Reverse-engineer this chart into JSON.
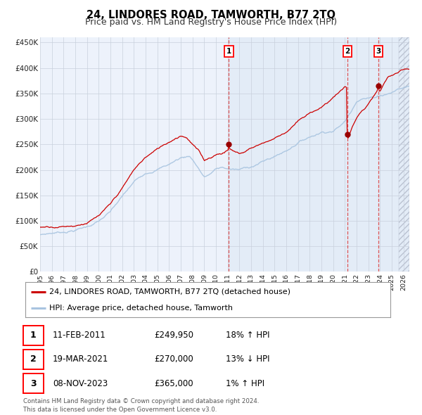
{
  "title": "24, LINDORES ROAD, TAMWORTH, B77 2TQ",
  "subtitle": "Price paid vs. HM Land Registry's House Price Index (HPI)",
  "ylim": [
    0,
    460000
  ],
  "yticks": [
    0,
    50000,
    100000,
    150000,
    200000,
    250000,
    300000,
    350000,
    400000,
    450000
  ],
  "ytick_labels": [
    "£0",
    "£50K",
    "£100K",
    "£150K",
    "£200K",
    "£250K",
    "£300K",
    "£350K",
    "£400K",
    "£450K"
  ],
  "hpi_color": "#a8c4e0",
  "price_color": "#cc0000",
  "marker_color": "#990000",
  "vline_color": "#dd4444",
  "shade_color": "#dce8f5",
  "transaction_dates": [
    2011.1,
    2021.22,
    2023.85
  ],
  "transaction_prices": [
    249950,
    270000,
    365000
  ],
  "transaction_labels": [
    "1",
    "2",
    "3"
  ],
  "legend_label_price": "24, LINDORES ROAD, TAMWORTH, B77 2TQ (detached house)",
  "legend_label_hpi": "HPI: Average price, detached house, Tamworth",
  "table_rows": [
    [
      "1",
      "11-FEB-2011",
      "£249,950",
      "18% ↑ HPI"
    ],
    [
      "2",
      "19-MAR-2021",
      "£270,000",
      "13% ↓ HPI"
    ],
    [
      "3",
      "08-NOV-2023",
      "£365,000",
      "1% ↑ HPI"
    ]
  ],
  "footnote": "Contains HM Land Registry data © Crown copyright and database right 2024.\nThis data is licensed under the Open Government Licence v3.0.",
  "background_color": "#ffffff",
  "plot_bg_color": "#edf2fb",
  "grid_color": "#c8d0dc",
  "title_fontsize": 10.5,
  "subtitle_fontsize": 9,
  "tick_fontsize": 7.5,
  "xstart": 1995.0,
  "xend": 2026.5,
  "xtick_years": [
    1995,
    1996,
    1997,
    1998,
    1999,
    2000,
    2001,
    2002,
    2003,
    2004,
    2005,
    2006,
    2007,
    2008,
    2009,
    2010,
    2011,
    2012,
    2013,
    2014,
    2015,
    2016,
    2017,
    2018,
    2019,
    2020,
    2021,
    2022,
    2023,
    2024,
    2025,
    2026
  ],
  "xtick_labels": [
    "1995",
    "1996",
    "1997",
    "1998",
    "1999",
    "2000",
    "2001",
    "2002",
    "2003",
    "2004",
    "2005",
    "2006",
    "2007",
    "2008",
    "2009",
    "2010",
    "2011",
    "2012",
    "2013",
    "2014",
    "2015",
    "2016",
    "2017",
    "2018",
    "2019",
    "2020",
    "2021",
    "2022",
    "2023",
    "2024",
    "2025",
    "2026"
  ]
}
